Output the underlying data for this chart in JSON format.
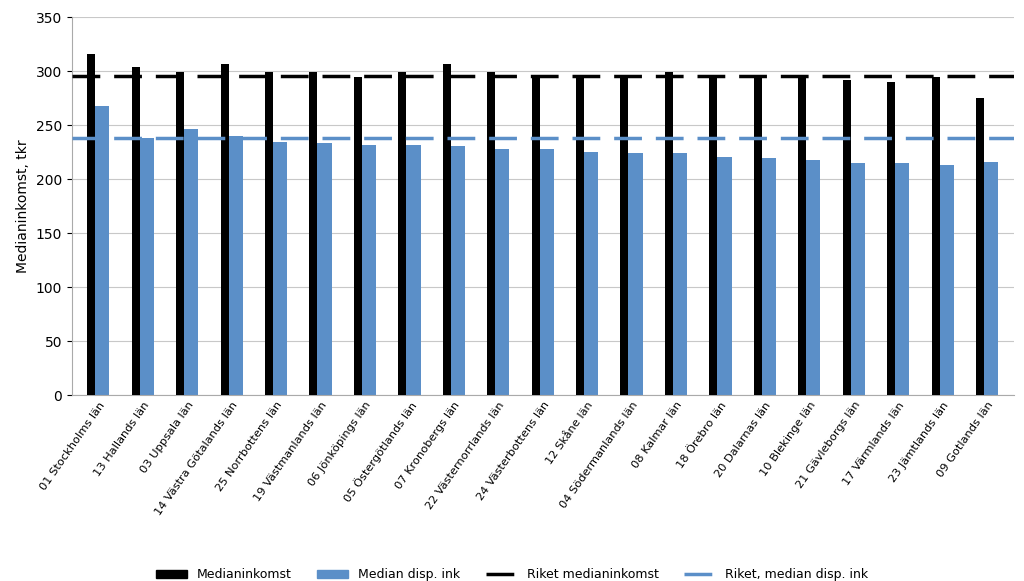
{
  "categories": [
    "01 Stockholms län",
    "13 Hallands län",
    "03 Uppsala län",
    "14 Västra Götalands län",
    "25 Norrbottens län",
    "19 Västmanlands län",
    "06 Jönköpings län",
    "05 Östergötlands län",
    "07 Kronobergs län",
    "22 Västernorrlands län",
    "24 Västerbottens län",
    "12 Skåne län",
    "04 Södermanlands län",
    "08 Kalmar län",
    "18 Örebro län",
    "20 Dalarnas län",
    "10 Blekinge län",
    "21 Gävleborgs län",
    "17 Värmlands län",
    "23 Jämtlands län",
    "09 Gotlands län"
  ],
  "medianinkomst": [
    316,
    304,
    299,
    307,
    299,
    299,
    295,
    299,
    307,
    299,
    295,
    295,
    295,
    299,
    295,
    295,
    295,
    292,
    290,
    295,
    275
  ],
  "median_disp_ink": [
    268,
    238,
    247,
    240,
    235,
    234,
    232,
    232,
    231,
    228,
    228,
    225,
    224,
    224,
    221,
    220,
    218,
    215,
    215,
    213,
    216
  ],
  "riket_medianinkomst": 296,
  "riket_median_disp_ink": 238,
  "ylabel": "Medianinkomst, tkr",
  "ylim": [
    0,
    350
  ],
  "yticks": [
    0,
    50,
    100,
    150,
    200,
    250,
    300,
    350
  ],
  "bar_color_black": "#000000",
  "bar_color_blue": "#5b8fc8",
  "line_color_black": "#000000",
  "line_color_blue": "#5b8fc8",
  "legend_labels": [
    "Medianinkomst",
    "Median disp. ink",
    "Riket medianinkomst",
    "Riket, median disp. ink"
  ],
  "background_color": "#ffffff",
  "grid_color": "#c8c8c8"
}
